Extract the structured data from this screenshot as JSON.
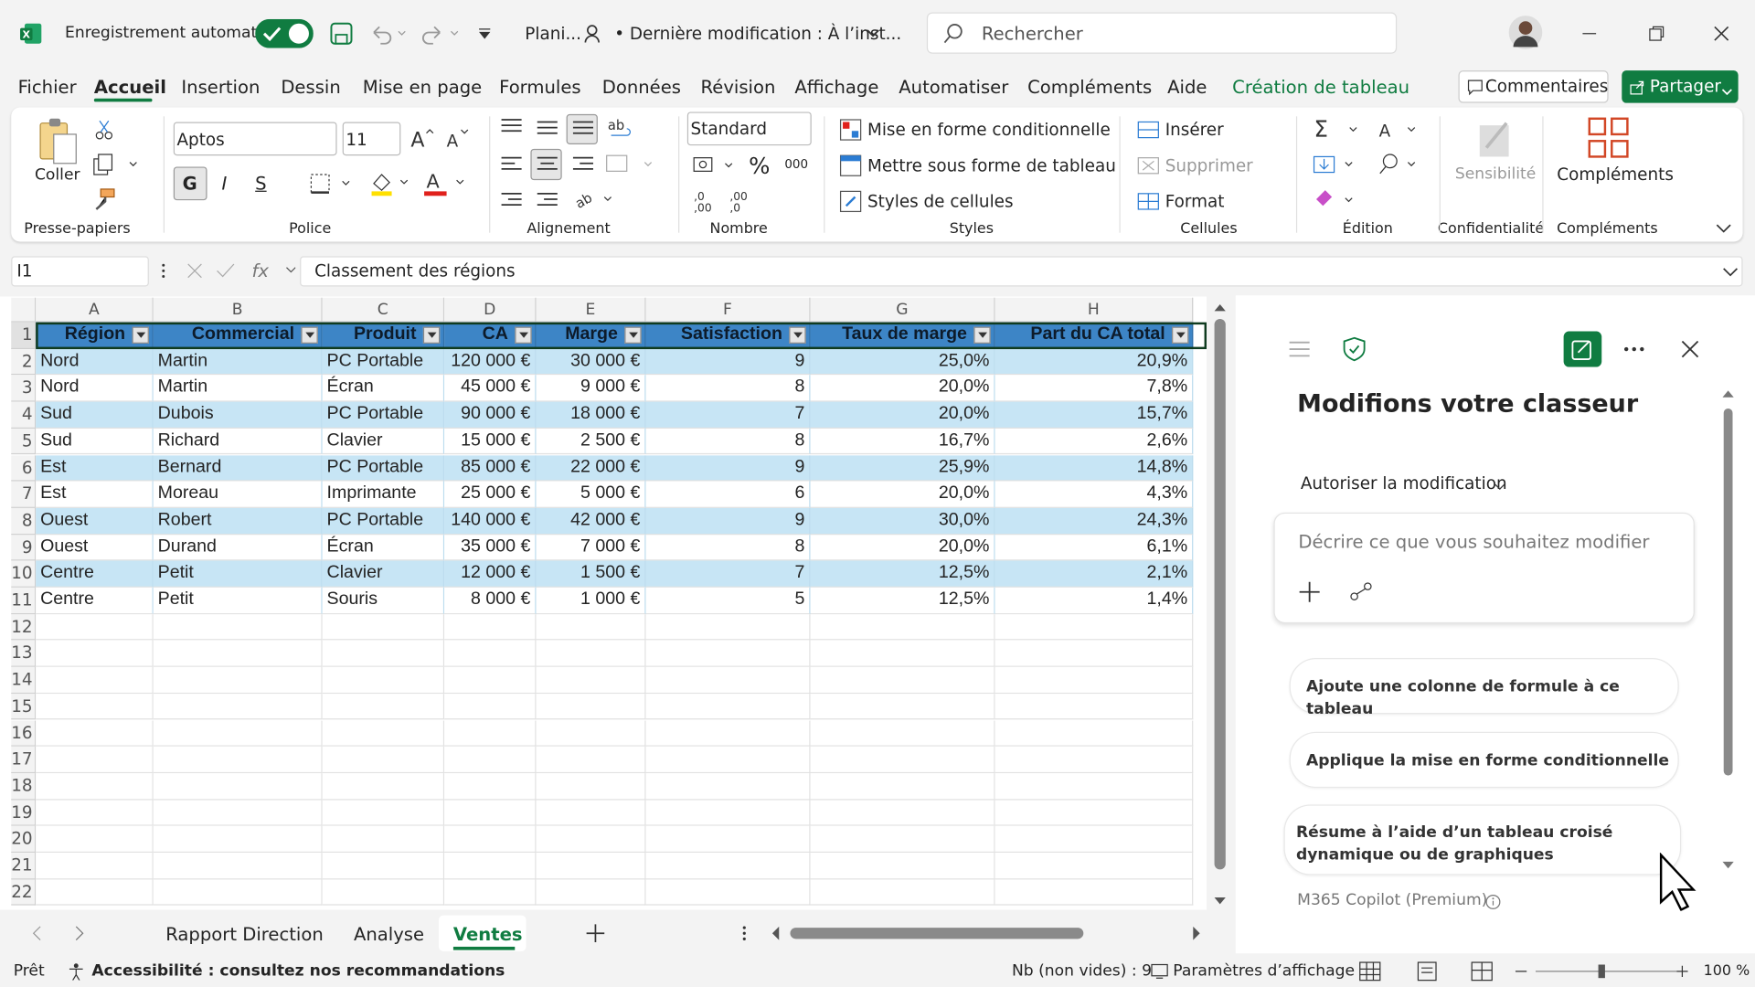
{
  "title_bar": {
    "autosave": "Enregistrement automatique",
    "file_name": "Plani...",
    "last_modified": "• Dernière modification : À l’inst...",
    "search": "Rechercher"
  },
  "menu": {
    "tabs": [
      "Fichier",
      "Accueil",
      "Insertion",
      "Dessin",
      "Mise en page",
      "Formules",
      "Données",
      "Révision",
      "Affichage",
      "Automatiser",
      "Compléments",
      "Aide",
      "Création de tableau"
    ],
    "active": 1,
    "contextual": 12,
    "comments": "Commentaires",
    "share": "Partager"
  },
  "ribbon": {
    "paste": "Coller",
    "font": "Aptos",
    "font_size": "11",
    "bold": "G",
    "italic": "I",
    "underline": "S",
    "number_format": "Standard",
    "percent": "%",
    "thousands": "000",
    "conditional_formatting": "Mise en forme conditionnelle",
    "format_as_table": "Mettre sous forme de tableau",
    "cell_styles": "Styles de cellules",
    "insert": "Insérer",
    "delete": "Supprimer",
    "format": "Format",
    "sensitivity": "Sensibilité",
    "addins": "Compléments",
    "groups": [
      "Presse-papiers",
      "Police",
      "Alignement",
      "Nombre",
      "Styles",
      "Cellules",
      "Édition",
      "Confidentialité",
      "Compléments"
    ]
  },
  "formula_bar": {
    "name_box": "I1",
    "fx": "fx",
    "content": "Classement des régions"
  },
  "sheet": {
    "columns": [
      "A",
      "B",
      "C",
      "D",
      "E",
      "F",
      "G",
      "H"
    ],
    "row_numbers": [
      1,
      2,
      3,
      4,
      5,
      6,
      7,
      8,
      9,
      10,
      11,
      12,
      13,
      14,
      15,
      16,
      17,
      18,
      19,
      20,
      21,
      22
    ],
    "table": {
      "header": [
        "Région",
        "Commercial",
        "Produit",
        "CA",
        "Marge",
        "Satisfaction",
        "Taux de marge",
        "Part du CA total"
      ],
      "rows": [
        [
          "Nord",
          "Martin",
          "PC Portable",
          "120 000 €",
          "30 000 €",
          "9",
          "25,0%",
          "20,9%"
        ],
        [
          "Nord",
          "Martin",
          "Écran",
          "45 000 €",
          "9 000 €",
          "8",
          "20,0%",
          "7,8%"
        ],
        [
          "Sud",
          "Dubois",
          "PC Portable",
          "90 000 €",
          "18 000 €",
          "7",
          "20,0%",
          "15,7%"
        ],
        [
          "Sud",
          "Richard",
          "Clavier",
          "15 000 €",
          "2 500 €",
          "8",
          "16,7%",
          "2,6%"
        ],
        [
          "Est",
          "Bernard",
          "PC Portable",
          "85 000 €",
          "22 000 €",
          "9",
          "25,9%",
          "14,8%"
        ],
        [
          "Est",
          "Moreau",
          "Imprimante",
          "25 000 €",
          "5 000 €",
          "6",
          "20,0%",
          "4,3%"
        ],
        [
          "Ouest",
          "Robert",
          "PC Portable",
          "140 000 €",
          "42 000 €",
          "9",
          "30,0%",
          "24,3%"
        ],
        [
          "Ouest",
          "Durand",
          "Écran",
          "35 000 €",
          "7 000 €",
          "8",
          "20,0%",
          "6,1%"
        ],
        [
          "Centre",
          "Petit",
          "Clavier",
          "12 000 €",
          "1 500 €",
          "7",
          "12,5%",
          "2,1%"
        ],
        [
          "Centre",
          "Petit",
          "Souris",
          "8 000 €",
          "1 000 €",
          "5",
          "12,5%",
          "1,4%"
        ]
      ]
    }
  },
  "sheet_tabs": {
    "tabs": [
      "Rapport Direction",
      "Analyse",
      "Ventes"
    ],
    "active": 2
  },
  "copilot": {
    "title": "Modifions votre classeur",
    "mode": "Autoriser la modification",
    "placeholder": "Décrire ce que vous souhaitez modifier",
    "suggestions": [
      "Ajoute une colonne de formule à ce tableau",
      "Applique la mise en forme conditionnelle",
      "Résume à l’aide d’un tableau croisé dynamique ou de graphiques"
    ],
    "footer": "M365 Copilot (Premium)"
  },
  "status_bar": {
    "ready": "Prêt",
    "accessibility": "Accessibilité : consultez nos recommandations",
    "count": "Nb (non vides) : 9",
    "display_settings": "Paramètres d’affichage",
    "zoom": "100 %"
  }
}
